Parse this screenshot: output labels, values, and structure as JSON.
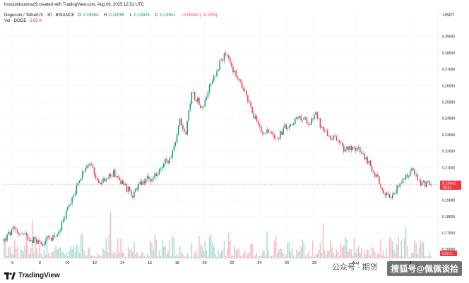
{
  "header": {
    "byline": "hosoulnlouoma29 created with TradingView.com, Aug 06, 2025 12:51 UTC",
    "symbol": "Dogecoin / TetherUS · 30 · BINANCE",
    "ohlc": [
      {
        "label": "O",
        "value": "0.19984"
      },
      {
        "label": "H",
        "value": "0.20065"
      },
      {
        "label": "L",
        "value": "0.19925"
      },
      {
        "label": "C",
        "value": "0.19941"
      }
    ],
    "change": "−0.00043 (−0.22%)",
    "volume_label": "Vol · DOGE",
    "volume_value": "5.65 K"
  },
  "footer": {
    "brand": "TradingView",
    "watermark_left": "公众号 · 期货",
    "watermark_right": "搜狐号@佩佩谈拾"
  },
  "colors": {
    "up": "#089981",
    "down": "#f23645",
    "grid": "#f0f3fa",
    "axis_text": "#131722",
    "price_tag": "#f23645"
  },
  "chart_data": {
    "type": "candlestick",
    "currency_label": "USDT",
    "y_ticks": [
      "0.29000",
      "0.28000",
      "0.27000",
      "0.26000",
      "0.25000",
      "0.24000",
      "0.23000",
      "0.22000",
      "0.21000",
      "0.20000",
      "0.19000",
      "0.18000",
      "0.17000",
      "0.16000"
    ],
    "ylim": [
      0.1545,
      0.2985
    ],
    "x_ticks": [
      "6",
      "8",
      "10",
      "12",
      "14",
      "16",
      "18",
      "20",
      "22",
      "24",
      "26",
      "28",
      "Aug",
      "4"
    ],
    "x_tick_days": [
      6,
      8,
      10,
      12,
      14,
      16,
      18,
      20,
      22,
      24,
      26,
      28,
      31,
      35
    ],
    "xlim": [
      5.3,
      37.0
    ],
    "last_price": "0.19941",
    "last_price_value": 0.19941,
    "countdown": "08:57",
    "volume_last": "5.65 K",
    "path_keypoints": [
      [
        5.4,
        0.165
      ],
      [
        6.2,
        0.172
      ],
      [
        7.0,
        0.168
      ],
      [
        8.2,
        0.164
      ],
      [
        9.5,
        0.17
      ],
      [
        10.0,
        0.182
      ],
      [
        11.0,
        0.203
      ],
      [
        11.8,
        0.212
      ],
      [
        12.5,
        0.2
      ],
      [
        13.5,
        0.207
      ],
      [
        14.2,
        0.2
      ],
      [
        14.8,
        0.193
      ],
      [
        15.6,
        0.201
      ],
      [
        16.6,
        0.205
      ],
      [
        17.0,
        0.212
      ],
      [
        17.7,
        0.216
      ],
      [
        18.3,
        0.24
      ],
      [
        18.7,
        0.23
      ],
      [
        19.2,
        0.256
      ],
      [
        20.0,
        0.246
      ],
      [
        20.5,
        0.262
      ],
      [
        21.0,
        0.268
      ],
      [
        21.3,
        0.277
      ],
      [
        21.8,
        0.278
      ],
      [
        22.3,
        0.267
      ],
      [
        22.9,
        0.258
      ],
      [
        23.6,
        0.244
      ],
      [
        24.2,
        0.232
      ],
      [
        24.6,
        0.233
      ],
      [
        25.4,
        0.228
      ],
      [
        26.1,
        0.236
      ],
      [
        27.0,
        0.24
      ],
      [
        27.8,
        0.238
      ],
      [
        28.2,
        0.244
      ],
      [
        28.7,
        0.232
      ],
      [
        29.5,
        0.228
      ],
      [
        30.3,
        0.221
      ],
      [
        31.0,
        0.223
      ],
      [
        31.8,
        0.216
      ],
      [
        32.5,
        0.206
      ],
      [
        33.1,
        0.196
      ],
      [
        33.8,
        0.192
      ],
      [
        34.4,
        0.202
      ],
      [
        34.9,
        0.206
      ],
      [
        35.2,
        0.208
      ],
      [
        35.5,
        0.205
      ],
      [
        35.9,
        0.2
      ],
      [
        36.6,
        0.1994
      ]
    ]
  }
}
